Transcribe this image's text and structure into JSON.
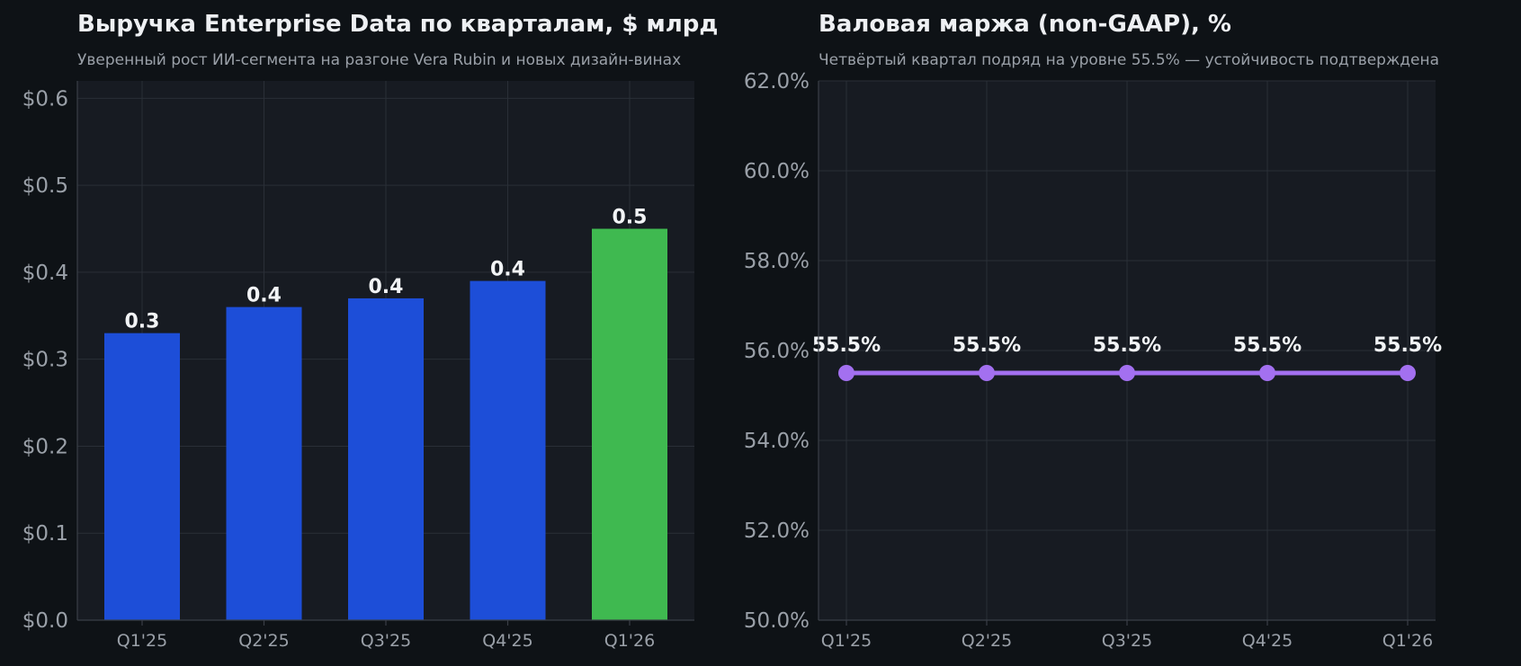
{
  "chart_data": [
    {
      "type": "bar",
      "title": "Выручка Enterprise Data по кварталам, $ млрд",
      "subtitle": "Уверенный рост ИИ-сегмента на разгоне Vera Rubin и новых дизайн-винах",
      "categories": [
        "Q1'25",
        "Q2'25",
        "Q3'25",
        "Q4'25",
        "Q1'26"
      ],
      "values": [
        0.33,
        0.36,
        0.37,
        0.39,
        0.45
      ],
      "data_labels": [
        "0.3",
        "0.4",
        "0.4",
        "0.4",
        "0.5"
      ],
      "bar_colors": [
        "#1d4ed8",
        "#1d4ed8",
        "#1d4ed8",
        "#1d4ed8",
        "#3fb950"
      ],
      "ylim": [
        0,
        0.62
      ],
      "yticks": [
        0,
        0.1,
        0.2,
        0.3,
        0.4,
        0.5,
        0.6
      ],
      "ytick_labels": [
        "$0.0",
        "$0.1",
        "$0.2",
        "$0.3",
        "$0.4",
        "$0.5",
        "$0.6"
      ],
      "grid": true,
      "xlabel": "",
      "ylabel": ""
    },
    {
      "type": "line",
      "title": "Валовая маржа (non-GAAP), %",
      "subtitle": "Четвёртый квартал подряд на уровне 55.5% — устойчивость подтверждена",
      "categories": [
        "Q1'25",
        "Q2'25",
        "Q3'25",
        "Q4'25",
        "Q1'26"
      ],
      "values": [
        55.5,
        55.5,
        55.5,
        55.5,
        55.5
      ],
      "data_labels": [
        "55.5%",
        "55.5%",
        "55.5%",
        "55.5%",
        "55.5%"
      ],
      "line_color": "#a370f0",
      "ylim": [
        50,
        62
      ],
      "yticks": [
        50,
        52,
        54,
        56,
        58,
        60,
        62
      ],
      "ytick_labels": [
        "50.0%",
        "52.0%",
        "54.0%",
        "56.0%",
        "58.0%",
        "60.0%",
        "62.0%"
      ],
      "grid": true,
      "xlabel": "",
      "ylabel": ""
    }
  ]
}
